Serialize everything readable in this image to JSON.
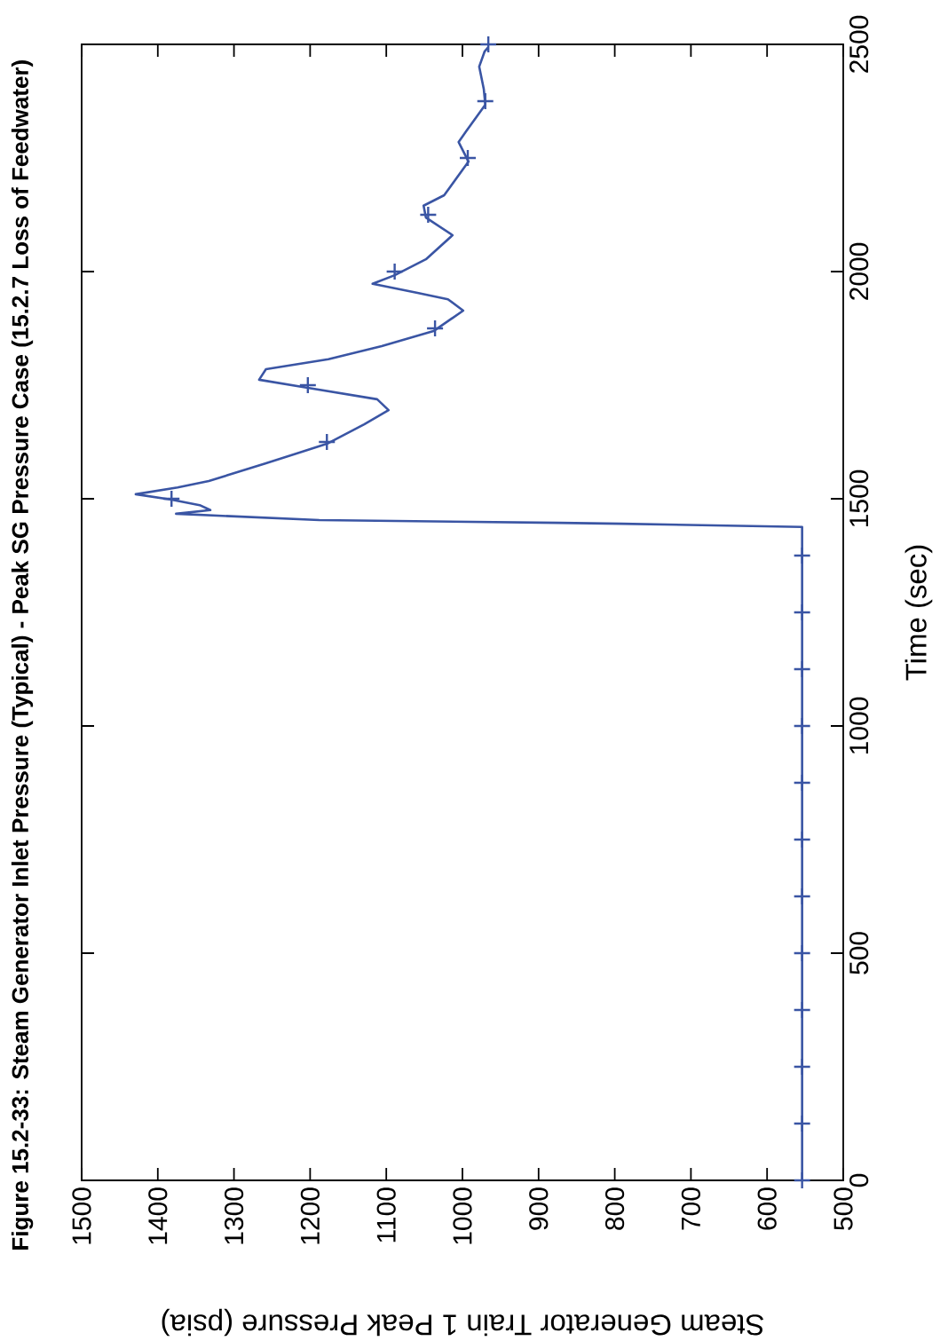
{
  "chart_data": {
    "type": "line",
    "title": "**Figure 15.2-33: Steam Generator Inlet Pressure (Typical) - Peak SG Pressure Case (15.2.7 Loss of Feedwater)**",
    "xlabel": "Steam Generator Train 1 Peak Pressure (psia)",
    "ylabel": "Time (sec)",
    "xlim": [
      1500,
      500
    ],
    "ylim": [
      0,
      2500
    ],
    "xticks": [
      1500,
      1400,
      1300,
      1200,
      1100,
      1000,
      900,
      800,
      700,
      600,
      500
    ],
    "yticks": [
      0,
      500,
      1000,
      1500,
      2000,
      2500
    ],
    "series": [
      {
        "color": "#3a55a4",
        "marker": "none",
        "x": [
          554,
          554,
          791,
          873,
          1188,
          1376,
          1331,
          1345,
          1382,
          1429,
          1374,
          1333,
          1258,
          1178,
          1129,
          1097,
          1112,
          1203,
          1267,
          1258,
          1176,
          1106,
          1038,
          999,
          1019,
          1059,
          1118,
          1089,
          1048,
          1013,
          1048,
          1051,
          1024,
          992,
          1005,
          995,
          970,
          972,
          978,
          971,
          966
        ],
        "values": [
          0,
          1438,
          1445,
          1447,
          1453,
          1467,
          1475,
          1486,
          1498,
          1510,
          1525,
          1539,
          1578,
          1621,
          1664,
          1695,
          1719,
          1744,
          1762,
          1785,
          1807,
          1836,
          1869,
          1914,
          1939,
          1953,
          1973,
          1992,
          2027,
          2080,
          2119,
          2145,
          2168,
          2242,
          2285,
          2309,
          2367,
          2402,
          2451,
          2484,
          2494
        ]
      },
      {
        "type": "scatter",
        "color": "#3a55a4",
        "marker": "cross",
        "x": [
          554,
          554,
          554,
          554,
          554,
          554,
          554,
          554,
          554,
          554,
          554,
          554,
          1382,
          1178,
          1203,
          1036,
          1089,
          1045,
          993,
          970,
          966
        ],
        "values": [
          0,
          125,
          250,
          375,
          500,
          625,
          750,
          875,
          1000,
          1125,
          1250,
          1375,
          1500,
          1625,
          1750,
          1875,
          2000,
          2125,
          2250,
          2375,
          2500
        ]
      }
    ]
  }
}
